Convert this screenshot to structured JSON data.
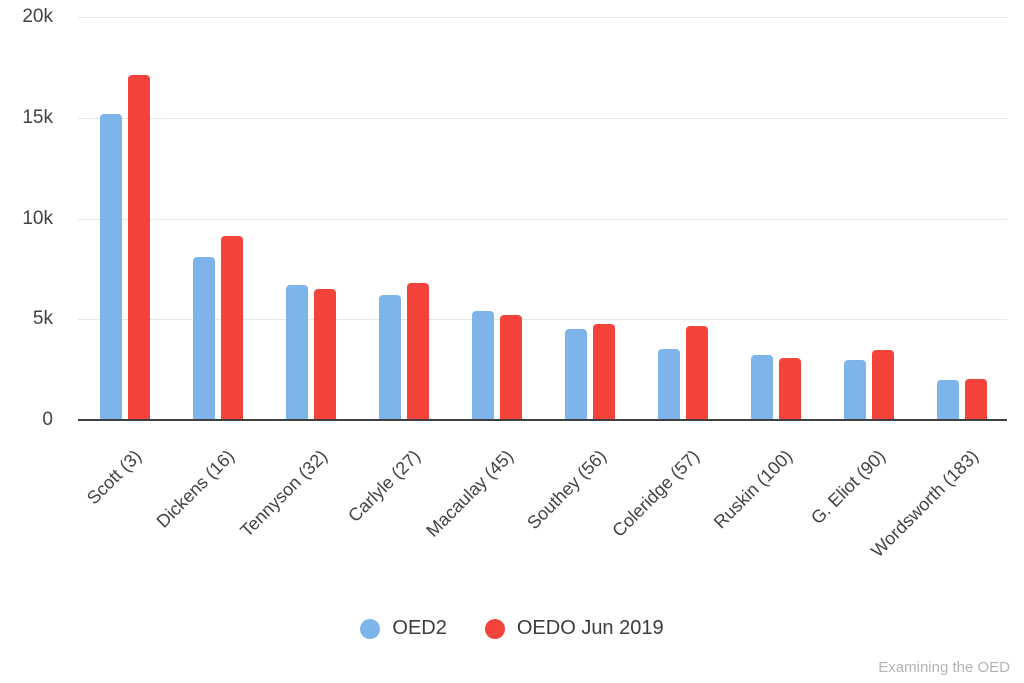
{
  "footer": {
    "credit": "Examining the OED"
  },
  "colors": {
    "series_blue": "#7db4ea",
    "series_red": "#f4433b",
    "gridline": "#e7e7e7",
    "axis_line": "#3f3f3f",
    "tick_text": "#434343",
    "legend_text": "#3c3c3c",
    "credit_text": "#b4b4b4"
  },
  "chart_data": {
    "type": "bar",
    "title": "",
    "xlabel": "",
    "ylabel": "",
    "categories": [
      "Scott (3)",
      "Dickens (16)",
      "Tennyson (32)",
      "Carlyle (27)",
      "Macaulay (45)",
      "Southey (56)",
      "Coleridge (57)",
      "Ruskin (100)",
      "G. Eliot (90)",
      "Wordsworth (183)"
    ],
    "series": [
      {
        "name": "OED2",
        "color": "#7db4ea",
        "values": [
          15200,
          8100,
          6700,
          6200,
          5400,
          4500,
          3550,
          3250,
          3000,
          2000
        ]
      },
      {
        "name": "OEDO Jun 2019",
        "color": "#f4433b",
        "values": [
          17100,
          9150,
          6500,
          6800,
          5200,
          4750,
          4650,
          3100,
          3500,
          2050
        ]
      }
    ],
    "ylim": [
      0,
      20000
    ],
    "yticks": [
      {
        "value": 0,
        "label": "0"
      },
      {
        "value": 5000,
        "label": "5k"
      },
      {
        "value": 10000,
        "label": "10k"
      },
      {
        "value": 15000,
        "label": "15k"
      },
      {
        "value": 20000,
        "label": "20k"
      }
    ],
    "grid": true,
    "legend_position": "bottom"
  }
}
